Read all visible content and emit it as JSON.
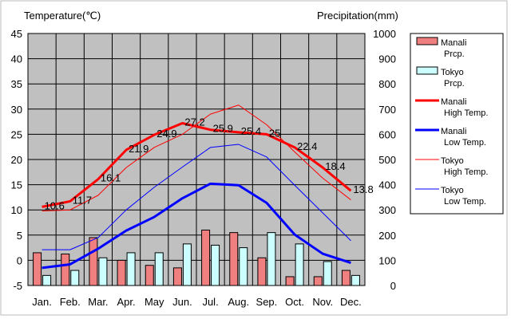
{
  "chart_data": {
    "type": "bar+line",
    "left_axis": {
      "title": "Temperature(℃)",
      "ylim": [
        -5,
        45
      ],
      "ticks": [
        -5,
        0,
        5,
        10,
        15,
        20,
        25,
        30,
        35,
        40,
        45
      ]
    },
    "right_axis": {
      "title": "Precipitation(mm)",
      "ylim": [
        0,
        1000
      ],
      "ticks": [
        0,
        100,
        200,
        300,
        400,
        500,
        600,
        700,
        800,
        900,
        1000
      ]
    },
    "categories": [
      "Jan.",
      "Feb.",
      "Mar.",
      "Apr.",
      "May",
      "Jun.",
      "Jul.",
      "Aug.",
      "Sep.",
      "Oct.",
      "Nov.",
      "Dec."
    ],
    "grid": true,
    "legend_position": "right",
    "bars": [
      {
        "name": "Manali\nPrcp.",
        "color": "#f08080",
        "axis": "right",
        "values": [
          130,
          125,
          190,
          100,
          80,
          70,
          220,
          210,
          110,
          35,
          35,
          60
        ]
      },
      {
        "name": "Tokyo\nPrcp.",
        "color": "#ccffff",
        "axis": "right",
        "values": [
          40,
          60,
          110,
          130,
          130,
          165,
          160,
          150,
          210,
          165,
          95,
          40
        ]
      }
    ],
    "lines": [
      {
        "name": "Manali\nHigh Temp.",
        "color": "#ff0000",
        "width": 3,
        "axis": "left",
        "values": [
          10.6,
          11.7,
          16.1,
          21.9,
          24.9,
          27.2,
          25.9,
          25.4,
          25,
          22.4,
          18.4,
          13.8
        ],
        "labels": [
          "10.6",
          "11.7",
          "16.1",
          "21.9",
          "24.9",
          "27.2",
          "25.9",
          "25.4",
          "25",
          "22.4",
          "18.4",
          "13.8"
        ]
      },
      {
        "name": "Manali\nLow Temp.",
        "color": "#0000ff",
        "width": 3,
        "axis": "left",
        "values": [
          -1.5,
          -0.8,
          2.3,
          5.9,
          8.6,
          12.3,
          15.2,
          14.9,
          11.4,
          5.1,
          1.3,
          -0.5
        ]
      },
      {
        "name": "Tokyo\nHigh Temp.",
        "color": "#ff0000",
        "width": 1,
        "axis": "left",
        "values": [
          9.8,
          10.0,
          12.9,
          18.4,
          22.4,
          25.0,
          29.0,
          30.8,
          26.9,
          21.5,
          16.3,
          12.0
        ]
      },
      {
        "name": "Tokyo\nLow Temp.",
        "color": "#0000ff",
        "width": 1,
        "axis": "left",
        "values": [
          2.1,
          2.1,
          4.5,
          10.0,
          14.5,
          18.5,
          22.4,
          23.0,
          20.5,
          14.9,
          9.4,
          3.9
        ]
      }
    ]
  }
}
